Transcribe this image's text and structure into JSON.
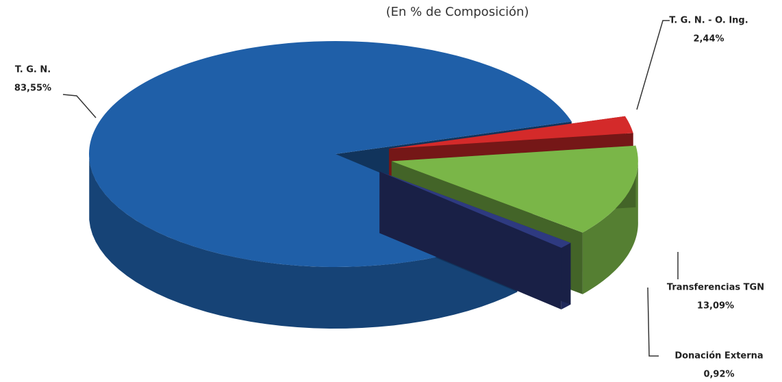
{
  "chart_data": {
    "type": "pie",
    "subtitle": "(En % de Composición)",
    "categories": [
      "T. G. N.",
      "T. G. N. - O. Ing.",
      "Transferencias TGN",
      "Donación Externa"
    ],
    "values": [
      83.55,
      2.44,
      13.09,
      0.92
    ],
    "value_labels": [
      "83,55%",
      "2,44%",
      "13,09%",
      "0,92%"
    ],
    "colors": [
      "#1f5fa8",
      "#d42a2a",
      "#7ab648",
      "#2e3a80"
    ]
  }
}
